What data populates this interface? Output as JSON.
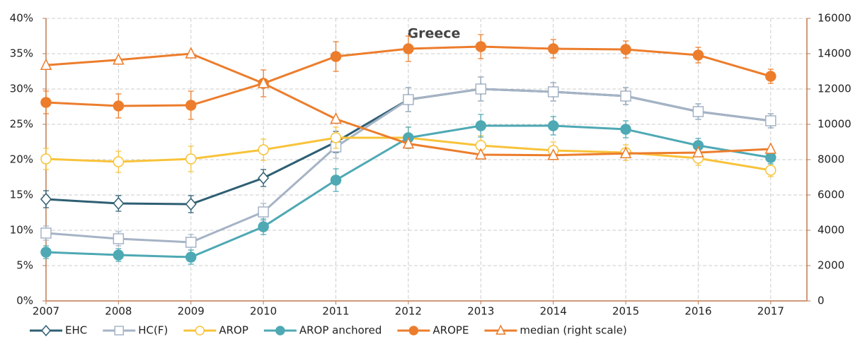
{
  "chart_data": {
    "type": "line",
    "title": "Greece",
    "x": [
      2007,
      2008,
      2009,
      2010,
      2011,
      2012,
      2013,
      2014,
      2015,
      2016,
      2017
    ],
    "xlim": [
      2007,
      2017.5
    ],
    "xticks": [
      2007,
      2008,
      2009,
      2010,
      2011,
      2012,
      2013,
      2014,
      2015,
      2016,
      2017
    ],
    "ylim": [
      0,
      40
    ],
    "yticks": [
      {
        "value": 0,
        "label": "0%"
      },
      {
        "value": 5,
        "label": "5%"
      },
      {
        "value": 10,
        "label": "10%"
      },
      {
        "value": 15,
        "label": "15%"
      },
      {
        "value": 20,
        "label": "20%"
      },
      {
        "value": 25,
        "label": "25%"
      },
      {
        "value": 30,
        "label": "30%"
      },
      {
        "value": 35,
        "label": "35%"
      },
      {
        "value": 40,
        "label": "40%"
      }
    ],
    "y2lim": [
      0,
      16000
    ],
    "y2ticks": [
      0,
      2000,
      4000,
      6000,
      8000,
      10000,
      12000,
      14000,
      16000
    ],
    "grid": true,
    "legend": "bottom",
    "series": [
      {
        "name": "EHC",
        "color": "#2e5f73",
        "marker": "diamond",
        "filled": false,
        "values": [
          14.4,
          13.8,
          13.7,
          17.4,
          22.5,
          28.5,
          30.0,
          29.6,
          29.0,
          26.8,
          25.5
        ],
        "errors": [
          1.2,
          1.1,
          1.2,
          1.2,
          1.5,
          1.7,
          1.7,
          1.3,
          1.2,
          1.1,
          1.0
        ]
      },
      {
        "name": "HC(F)",
        "color": "#a5b3c5",
        "marker": "square",
        "filled": false,
        "values": [
          9.6,
          8.8,
          8.3,
          12.6,
          21.8,
          28.5,
          30.0,
          29.6,
          29.0,
          26.8,
          25.5
        ],
        "errors": [
          1.0,
          1.0,
          1.1,
          1.2,
          1.6,
          1.7,
          1.7,
          1.3,
          1.2,
          1.1,
          1.0
        ]
      },
      {
        "name": "AROP",
        "color": "#f8c33a",
        "marker": "circle",
        "filled": false,
        "values": [
          20.1,
          19.7,
          20.1,
          21.4,
          23.1,
          23.1,
          22.0,
          21.3,
          21.0,
          20.2,
          18.5
        ],
        "errors": [
          1.5,
          1.5,
          1.8,
          1.5,
          1.5,
          1.5,
          1.4,
          1.2,
          1.1,
          1.0,
          0.9
        ]
      },
      {
        "name": "AROP anchored",
        "color": "#4ea9b4",
        "marker": "circle",
        "filled": true,
        "values": [
          6.9,
          6.5,
          6.2,
          10.5,
          17.1,
          23.1,
          24.8,
          24.8,
          24.3,
          22.0,
          20.3
        ],
        "errors": [
          0.9,
          0.9,
          1.0,
          1.1,
          1.6,
          1.5,
          1.6,
          1.3,
          1.2,
          1.0,
          0.9
        ]
      },
      {
        "name": "AROPE",
        "color": "#ec7d2c",
        "marker": "circle",
        "filled": true,
        "values": [
          28.1,
          27.6,
          27.7,
          30.8,
          34.6,
          35.7,
          36.0,
          35.7,
          35.6,
          34.8,
          31.8
        ],
        "errors": [
          1.6,
          1.7,
          2.0,
          1.9,
          2.1,
          1.8,
          1.7,
          1.3,
          1.2,
          1.1,
          1.0
        ]
      },
      {
        "name": "median (right scale)",
        "color": "#ec7d2c",
        "marker": "triangle",
        "filled": false,
        "axis": "y2",
        "values": [
          13350,
          13650,
          14000,
          12320,
          10300,
          8900,
          8280,
          8250,
          8350,
          8400,
          8600
        ]
      }
    ]
  }
}
